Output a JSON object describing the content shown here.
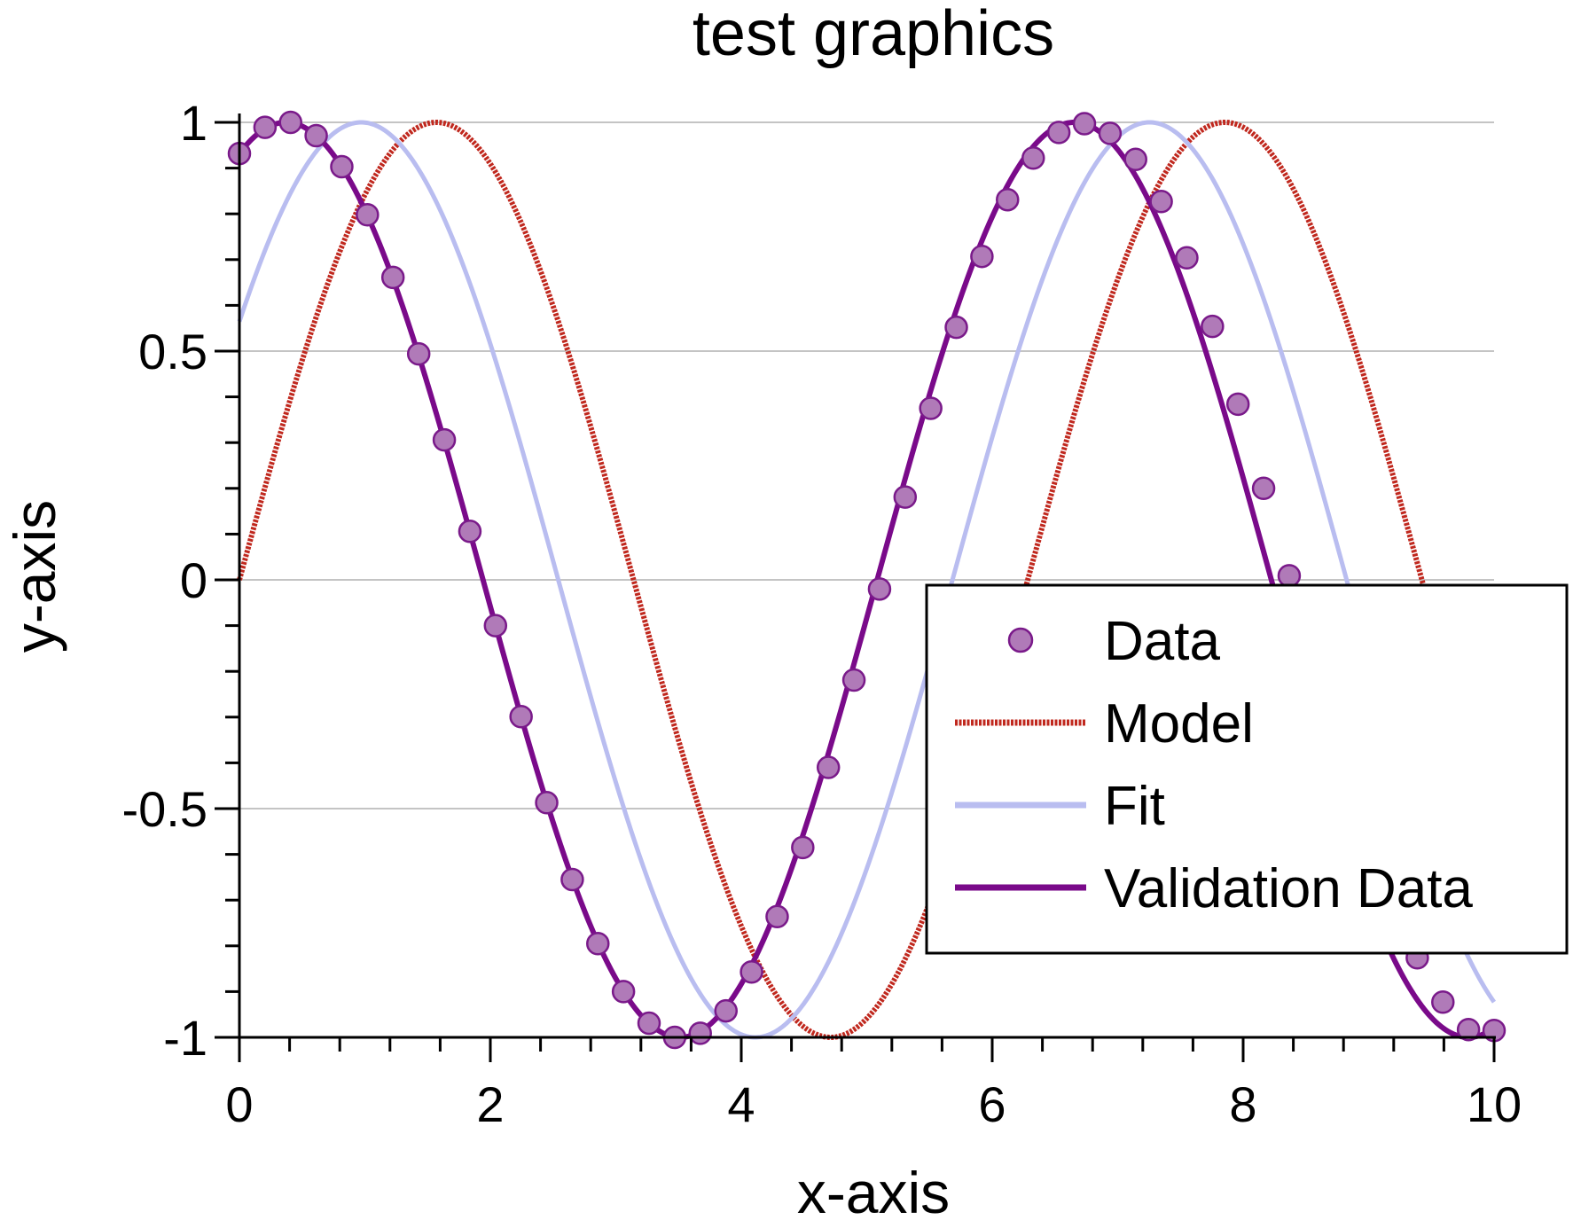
{
  "chart_data": {
    "type": "line",
    "title": "test graphics",
    "xlabel": "x-axis",
    "ylabel": "y-axis",
    "xlim": [
      0,
      10
    ],
    "ylim": [
      -1,
      1
    ],
    "x_ticks": [
      0,
      2,
      4,
      6,
      8,
      10
    ],
    "x_tick_labels": [
      "0",
      "2",
      "4",
      "6",
      "8",
      "10"
    ],
    "y_ticks": [
      -1,
      -0.5,
      0,
      0.5,
      1
    ],
    "y_tick_labels": [
      "-1",
      "-0.5",
      "0",
      "0.5",
      "1"
    ],
    "grid": "horizontal",
    "legend_position": "center-right",
    "series": [
      {
        "name": "Data",
        "style": "markers",
        "color": "#b07ab8",
        "edge_color": "#7a1a8a",
        "x": [
          0,
          0.204,
          0.408,
          0.612,
          0.816,
          1.02,
          1.224,
          1.429,
          1.633,
          1.837,
          2.041,
          2.245,
          2.449,
          2.653,
          2.857,
          3.061,
          3.265,
          3.469,
          3.673,
          3.878,
          4.082,
          4.286,
          4.49,
          4.694,
          4.898,
          5.102,
          5.306,
          5.51,
          5.714,
          5.918,
          6.122,
          6.327,
          6.531,
          6.735,
          6.939,
          7.143,
          7.347,
          7.551,
          7.755,
          7.959,
          8.163,
          8.367,
          8.571,
          8.776,
          8.98,
          9.184,
          9.388,
          9.592,
          9.796,
          10
        ],
        "y": [
          0.932,
          0.989,
          1.0,
          0.971,
          0.903,
          0.798,
          0.661,
          0.494,
          0.306,
          0.106,
          -0.1,
          -0.299,
          -0.487,
          -0.655,
          -0.795,
          -0.9,
          -0.969,
          -1.0,
          -0.991,
          -0.942,
          -0.857,
          -0.736,
          -0.585,
          -0.41,
          -0.219,
          -0.02,
          0.181,
          0.375,
          0.552,
          0.707,
          0.831,
          0.922,
          0.978,
          0.997,
          0.976,
          0.919,
          0.827,
          0.704,
          0.554,
          0.384,
          0.2,
          0.009,
          -0.181,
          -0.368,
          -0.542,
          -0.697,
          -0.826,
          -0.923,
          -0.983,
          -0.985
        ]
      },
      {
        "name": "Model",
        "style": "dotted-line",
        "color": "#c0281e",
        "function": "sin(x)"
      },
      {
        "name": "Fit",
        "style": "line",
        "color": "#b9bdf0",
        "function": "sin(x+0.6)"
      },
      {
        "name": "Validation Data",
        "style": "line",
        "color": "#7a0a8a",
        "function": "sin(x+1.2)"
      }
    ]
  }
}
